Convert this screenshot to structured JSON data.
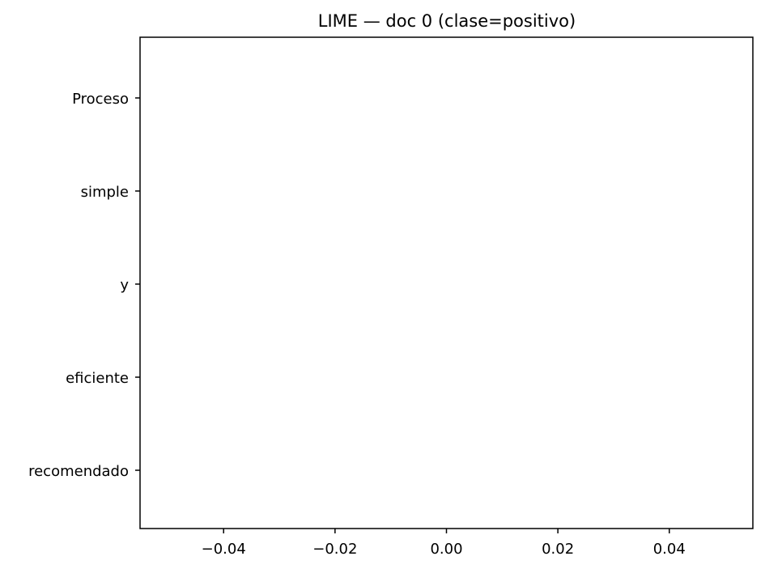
{
  "chart_data": {
    "type": "bar",
    "title": "LIME — doc 0 (clase=positivo)",
    "xlabel": "",
    "ylabel": "",
    "categories": [
      "Proceso",
      "simple",
      "y",
      "eficiente",
      "recomendado"
    ],
    "values": [
      0,
      0,
      0,
      0,
      0
    ],
    "xlim": [
      -0.055,
      0.055
    ],
    "xticks": [
      -0.04,
      -0.02,
      0.0,
      0.02,
      0.04
    ],
    "xtick_labels": [
      "−0.04",
      "−0.02",
      "0.00",
      "0.02",
      "0.04"
    ],
    "orientation": "horizontal",
    "grid": false,
    "legend": "none",
    "colors": {
      "axes": "#000000",
      "background": "#ffffff"
    }
  }
}
